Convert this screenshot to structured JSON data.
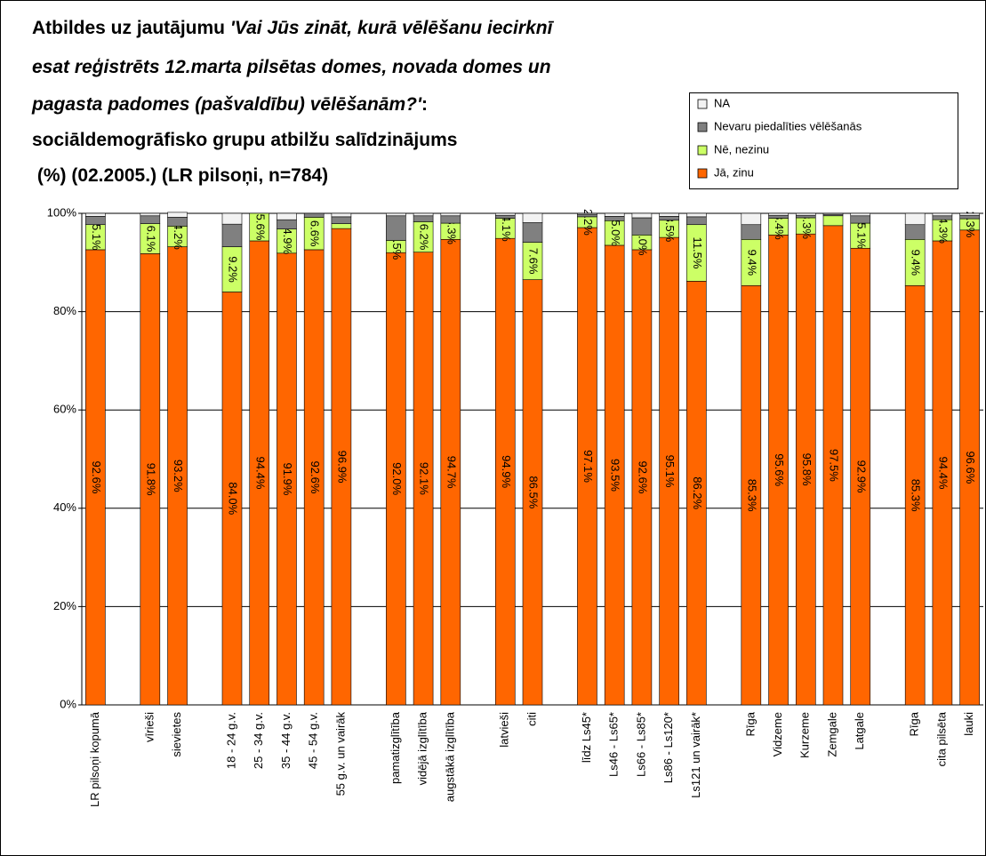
{
  "chart_data": {
    "type": "stacked_bar",
    "title_lines": [
      [
        "Atbildes uz jautājumu ",
        "'Vai Jūs zināt, kurā vēlēšanu iecirknī"
      ],
      [
        "esat reģistrēts 12.marta pilsētas domes, novada domes un"
      ],
      [
        "pagasta padomes (pašvaldību) vēlēšanām?'",
        ":"
      ],
      [
        "sociāldemogrāfisko grupu atbilžu salīdzinājums"
      ],
      [
        " (%) (02.2005.) (LR pilsoņi, n=784)"
      ]
    ],
    "categories": [
      "LR pilsoņi kopumā",
      null,
      "vīrieši",
      "sievietes",
      null,
      "18 - 24 g.v.",
      "25 - 34 g.v.",
      "35 - 44 g.v.",
      "45 - 54 g.v.",
      "55 g.v. un vairāk",
      null,
      "pamatizglītība",
      "vidējā izglītība",
      "augstākā izglītība",
      null,
      "latvieši",
      "citi",
      null,
      "līdz Ls45*",
      "Ls46 - Ls65*",
      "Ls66 - Ls85*",
      "Ls86 - Ls120*",
      "Ls121 un vairāk*",
      null,
      "Rīga",
      "Vidzeme",
      "Kurzeme",
      "Zemgale",
      "Latgale",
      null,
      "Rīga",
      "cita pilsēta",
      "lauki"
    ],
    "series": [
      {
        "name": "Jā, zinu",
        "color": "#ff6600",
        "values": [
          92.6,
          null,
          91.8,
          93.2,
          null,
          84.0,
          94.4,
          91.9,
          92.6,
          96.9,
          null,
          92.0,
          92.1,
          94.7,
          null,
          94.9,
          86.5,
          null,
          97.1,
          93.5,
          92.6,
          95.1,
          86.2,
          null,
          85.3,
          95.6,
          95.8,
          97.5,
          92.9,
          null,
          85.3,
          94.4,
          96.6
        ],
        "value_labels": [
          "92.6%",
          null,
          "91.8%",
          "93.2%",
          null,
          "84.0%",
          "94.4%",
          "91.9%",
          "92.6%",
          "96.9%",
          null,
          "92.0%",
          "92.1%",
          "94.7%",
          null,
          "94.9%",
          "86.5%",
          null,
          "97.1%",
          "93.5%",
          "92.6%",
          "95.1%",
          "86.2%",
          null,
          "85.3%",
          "95.6%",
          "95.8%",
          "97.5%",
          "92.9%",
          null,
          "85.3%",
          "94.4%",
          "96.6%"
        ]
      },
      {
        "name": "Nē, nezinu",
        "color": "#ccff66",
        "values": [
          5.1,
          null,
          6.1,
          4.2,
          null,
          9.2,
          5.6,
          4.9,
          6.6,
          1.0,
          null,
          2.5,
          6.2,
          3.3,
          null,
          4.1,
          7.6,
          null,
          2.2,
          5.0,
          3.0,
          3.5,
          11.5,
          null,
          9.4,
          3.4,
          3.3,
          2.0,
          5.1,
          null,
          9.4,
          4.3,
          2.3
        ],
        "value_labels": [
          "5.1%",
          null,
          "6.1%",
          "4.2%",
          null,
          "9.2%",
          "5.6%",
          "4.9%",
          "6.6%",
          null,
          null,
          "2.5%",
          "6.2%",
          "3.3%",
          null,
          "4.1%",
          "7.6%",
          null,
          "2.2%",
          "5.0%",
          "3.0%",
          "3.5%",
          "11.5%",
          null,
          "9.4%",
          "3.4%",
          "3.3%",
          null,
          "5.1%",
          null,
          "9.4%",
          "4.3%",
          "2.3%"
        ]
      },
      {
        "name": "Nevaru piedalīties vēlēšanās",
        "color": "#808080",
        "values": [
          1.7,
          null,
          1.6,
          1.8,
          null,
          4.6,
          0,
          1.9,
          0.8,
          1.4,
          null,
          5.0,
          1.2,
          1.5,
          null,
          0.6,
          4.0,
          null,
          0.5,
          0.9,
          3.5,
          0.8,
          1.6,
          null,
          3.0,
          0.6,
          0.5,
          0.3,
          1.5,
          null,
          3.0,
          0.8,
          0.7
        ]
      },
      {
        "name": "NA",
        "color": "#f2f2f2",
        "values": [
          0.6,
          null,
          0.5,
          1.0,
          null,
          2.2,
          0,
          1.3,
          0,
          0.7,
          null,
          0.5,
          0.5,
          0.5,
          null,
          0.4,
          1.9,
          null,
          0.2,
          0.6,
          0.9,
          0.6,
          0.7,
          null,
          2.3,
          0.4,
          0.4,
          0.2,
          0.5,
          null,
          2.3,
          0.5,
          0.4
        ]
      }
    ],
    "ylim": [
      0,
      100
    ],
    "yticks": [
      {
        "value": 0,
        "label": "0%"
      },
      {
        "value": 20,
        "label": "20%"
      },
      {
        "value": 40,
        "label": "40%"
      },
      {
        "value": 60,
        "label": "60%"
      },
      {
        "value": 80,
        "label": "80%"
      },
      {
        "value": 100,
        "label": "100%"
      }
    ],
    "grid": true,
    "legend": "top-right"
  }
}
